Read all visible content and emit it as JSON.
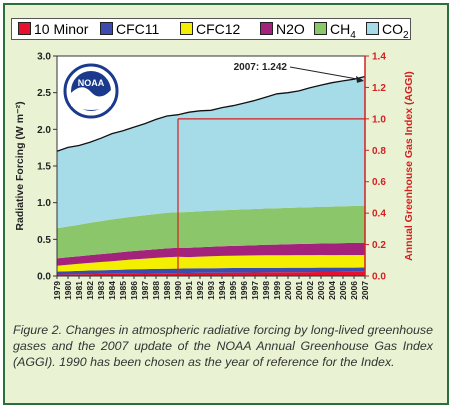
{
  "legend": [
    {
      "label": "10 Minor",
      "color": "#e8112d"
    },
    {
      "label": "CFC11",
      "color": "#3b4bb0"
    },
    {
      "label": "CFC12",
      "color": "#f4ee00"
    },
    {
      "label": "N2O",
      "color": "#a3237c"
    },
    {
      "label": "CH4",
      "color": "#8cc66b"
    },
    {
      "label": "CO2",
      "color": "#a6dbe8"
    }
  ],
  "logo": {
    "text": "NOAA"
  },
  "caption": "Figure 2. Changes in atmospheric radiative forcing by long-lived greenhouse gases and the 2007 update of the NOAA Annual Greenhouse Gas Index (AGGI). 1990 has been chosen as the year of reference for the Index.",
  "chart_data": {
    "type": "area",
    "stacked": true,
    "x": [
      1979,
      1980,
      1981,
      1982,
      1983,
      1984,
      1985,
      1986,
      1987,
      1988,
      1989,
      1990,
      1991,
      1992,
      1993,
      1994,
      1995,
      1996,
      1997,
      1998,
      1999,
      2000,
      2001,
      2002,
      2003,
      2004,
      2005,
      2006,
      2007
    ],
    "series": [
      {
        "name": "10 Minor",
        "color": "#e8112d",
        "values": [
          0.02,
          0.022,
          0.024,
          0.026,
          0.028,
          0.029,
          0.031,
          0.033,
          0.034,
          0.036,
          0.038,
          0.039,
          0.041,
          0.043,
          0.044,
          0.045,
          0.046,
          0.047,
          0.048,
          0.049,
          0.05,
          0.051,
          0.052,
          0.053,
          0.054,
          0.055,
          0.056,
          0.057,
          0.058
        ]
      },
      {
        "name": "CFC11",
        "color": "#3b4bb0",
        "values": [
          0.04,
          0.043,
          0.046,
          0.049,
          0.051,
          0.053,
          0.056,
          0.058,
          0.06,
          0.061,
          0.062,
          0.062,
          0.063,
          0.063,
          0.063,
          0.063,
          0.063,
          0.062,
          0.062,
          0.062,
          0.061,
          0.061,
          0.061,
          0.06,
          0.06,
          0.059,
          0.059,
          0.058,
          0.058
        ]
      },
      {
        "name": "CFC12",
        "color": "#f4ee00",
        "values": [
          0.08,
          0.088,
          0.096,
          0.104,
          0.112,
          0.12,
          0.128,
          0.136,
          0.143,
          0.15,
          0.156,
          0.161,
          0.154,
          0.159,
          0.163,
          0.166,
          0.168,
          0.17,
          0.171,
          0.172,
          0.172,
          0.172,
          0.172,
          0.172,
          0.172,
          0.171,
          0.171,
          0.171,
          0.17
        ]
      },
      {
        "name": "N2O",
        "color": "#a3237c",
        "values": [
          0.1,
          0.102,
          0.104,
          0.106,
          0.108,
          0.11,
          0.112,
          0.114,
          0.116,
          0.118,
          0.121,
          0.124,
          0.126,
          0.128,
          0.129,
          0.131,
          0.133,
          0.136,
          0.139,
          0.142,
          0.145,
          0.148,
          0.151,
          0.154,
          0.157,
          0.16,
          0.162,
          0.165,
          0.168
        ]
      },
      {
        "name": "CH4",
        "color": "#8cc66b",
        "values": [
          0.41,
          0.42,
          0.43,
          0.44,
          0.45,
          0.46,
          0.465,
          0.47,
          0.475,
          0.48,
          0.485,
          0.484,
          0.489,
          0.49,
          0.49,
          0.491,
          0.492,
          0.493,
          0.494,
          0.495,
          0.496,
          0.497,
          0.498,
          0.499,
          0.5,
          0.501,
          0.502,
          0.503,
          0.506
        ]
      },
      {
        "name": "CO2",
        "color": "#a6dbe8",
        "values": [
          1.05,
          1.078,
          1.08,
          1.1,
          1.13,
          1.17,
          1.19,
          1.22,
          1.25,
          1.29,
          1.32,
          1.33,
          1.36,
          1.37,
          1.37,
          1.4,
          1.42,
          1.45,
          1.48,
          1.52,
          1.56,
          1.57,
          1.59,
          1.63,
          1.66,
          1.69,
          1.71,
          1.73,
          1.76
        ]
      }
    ],
    "ylabel_left": "Radiative Forcing (W m⁻²)",
    "ylabel_right": "Annual Greenhouse Gas Index (AGGI)",
    "ylim_left": [
      0,
      3.0
    ],
    "ylim_right": [
      0,
      1.4
    ],
    "yticks_left": [
      "0.0",
      "0.5",
      "1.0",
      "1.5",
      "2.0",
      "2.5",
      "3.0"
    ],
    "yticks_right": [
      "0.0",
      "0.2",
      "0.4",
      "0.6",
      "0.8",
      "1.0",
      "1.2",
      "1.4"
    ],
    "reference_year": 1990,
    "reference_index": 1.0,
    "annotation": {
      "text": "2007: 1.242",
      "x": 2007,
      "index": 1.242
    },
    "grid": true
  }
}
